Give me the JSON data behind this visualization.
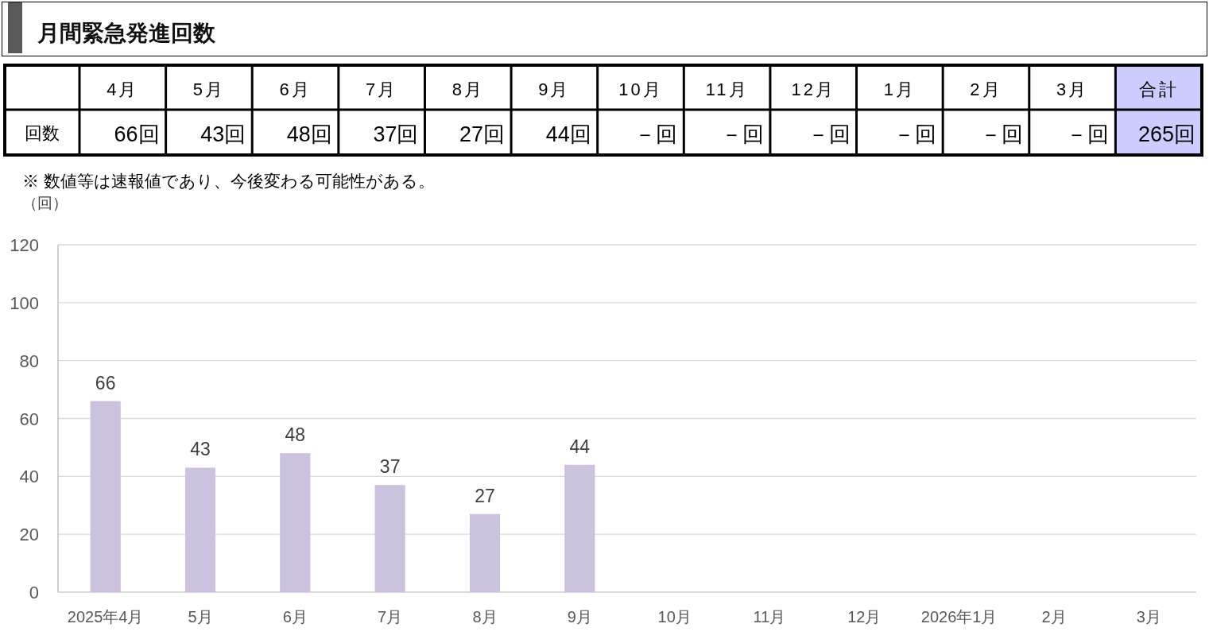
{
  "chart_data": [
    {
      "type": "heatmap",
      "title": "月間緊急発進回数",
      "categories": [
        "4月",
        "5月",
        "6月",
        "7月",
        "8月",
        "9月",
        "10月",
        "11月",
        "12月",
        "1月",
        "2月",
        "3月",
        "合計"
      ],
      "y_categories": [
        "回数"
      ],
      "cells": [
        [
          66,
          43,
          48,
          37,
          27,
          44,
          null,
          null,
          null,
          null,
          null,
          null,
          265
        ]
      ],
      "cell_labels": [
        [
          "66回",
          "43回",
          "48回",
          "37回",
          "27回",
          "44回",
          "－回",
          "－回",
          "－回",
          "－回",
          "－回",
          "－回",
          "265回"
        ]
      ],
      "colors": [
        [
          "#ffffff",
          "#ffffff",
          "#ffffff",
          "#ffffff",
          "#ffffff",
          "#ffffff",
          "#ffffff",
          "#ffffff",
          "#ffffff",
          "#ffffff",
          "#ffffff",
          "#ffffff",
          "#ccccff"
        ]
      ],
      "annotations": [
        "※  数値等は速報値であり、今後変わる可能性がある。"
      ]
    },
    {
      "type": "bar",
      "ylabel": "（回）",
      "categories": [
        "2025年4月",
        "5月",
        "6月",
        "7月",
        "8月",
        "9月",
        "10月",
        "11月",
        "12月",
        "2026年1月",
        "2月",
        "3月"
      ],
      "values": [
        66,
        43,
        48,
        37,
        27,
        44,
        null,
        null,
        null,
        null,
        null,
        null
      ],
      "color": "#cbc3dd",
      "ylim": [
        0,
        120
      ],
      "yticks": [
        0,
        20,
        40,
        60,
        80,
        100,
        120
      ],
      "grid": "y",
      "data_labels": true
    }
  ]
}
